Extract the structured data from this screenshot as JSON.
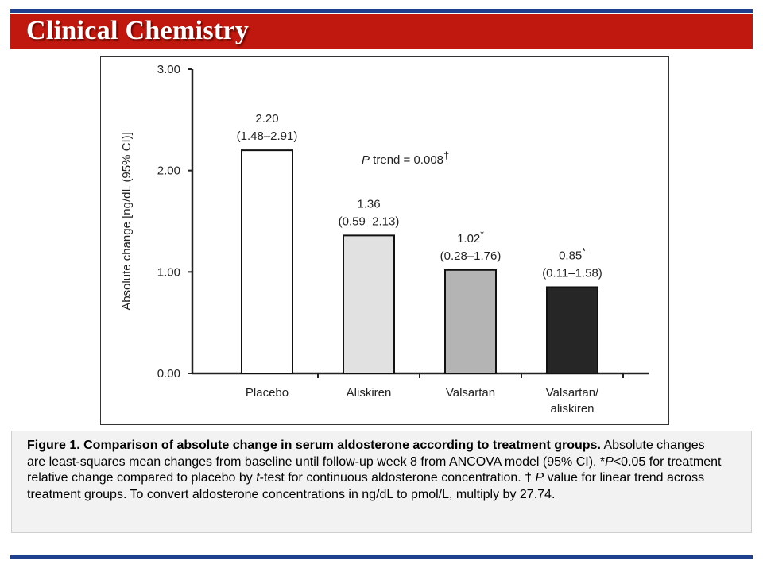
{
  "header": {
    "title": "Clinical Chemistry",
    "accent_color": "#c0180f",
    "rule_color": "#1f3f8f"
  },
  "chart_data": {
    "type": "bar",
    "categories": [
      "Placebo",
      "Aliskiren",
      "Valsartan",
      "Valsartan/aliskiren"
    ],
    "category_lines": [
      [
        "Placebo"
      ],
      [
        "Aliskiren"
      ],
      [
        "Valsartan"
      ],
      [
        "Valsartan/",
        "aliskiren"
      ]
    ],
    "values": [
      2.2,
      1.36,
      1.02,
      0.85
    ],
    "value_labels": [
      "2.20",
      "1.36",
      "1.02",
      "0.85"
    ],
    "ci_labels": [
      "(1.48–2.91)",
      "(0.59–2.13)",
      "(0.28–1.76)",
      "(0.11–1.58)"
    ],
    "significant": [
      false,
      false,
      true,
      true
    ],
    "significance_marker": "*",
    "bar_colors": [
      "#ffffff",
      "#e1e1e1",
      "#b4b4b4",
      "#262626"
    ],
    "ylabel": "Absolute change [ng/dL (95% CI)]",
    "xlabel": "",
    "ylim": [
      0,
      3
    ],
    "yticks": [
      0,
      1,
      2,
      3
    ],
    "ytick_labels": [
      "0.00",
      "1.00",
      "2.00",
      "3.00"
    ],
    "grid": false,
    "annotation": {
      "p_italic": "P",
      "text": " trend = 0.008",
      "marker": "†"
    }
  },
  "caption": {
    "title": "Figure 1. Comparison of absolute change in serum aldosterone according to treatment groups.",
    "text_1": "  Absolute changes are least-squares mean changes from baseline until follow-up week 8 from ANCOVA model (95% CI). *",
    "p1": "P",
    "text_2": "<0.05 for treatment relative change compared to placebo by ",
    "t": "t",
    "text_3": "-test for continuous aldosterone concentration. † ",
    "p2": "P",
    "text_4": " value for linear trend across treatment groups.  To convert aldosterone concentrations in ng/dL to pmol/L, multiply by 27.74."
  }
}
